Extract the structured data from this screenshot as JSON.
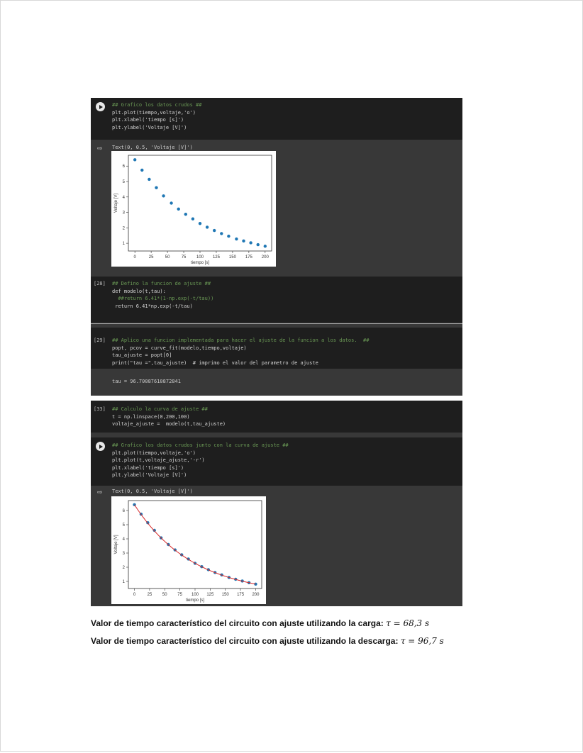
{
  "cells": {
    "plot_raw": {
      "lines": [
        "## Grafico los datos crudos ##",
        "plt.plot(tiempo,voltaje,'o')",
        "plt.xlabel('tiempo [s]')",
        "plt.ylabel('Voltaje [V]')"
      ],
      "output": "Text(0, 0.5, 'Voltaje [V]')"
    },
    "def_model": {
      "number": "[28]",
      "lines": [
        "## Defino la funcion de ajuste ##",
        "def modelo(t,tau):",
        "  ##return 6.41*(1-np.exp(-t/tau))",
        " return 6.41*np.exp(-t/tau)"
      ]
    },
    "fit": {
      "number": "[29]",
      "lines": [
        "## Aplico una funcion implementada para hacer el ajuste de la funcion a los datos.  ##",
        "popt, pcov = curve_fit(modelo,tiempo,voltaje)",
        "tau_ajuste = popt[0]",
        "print(\"tau =\",tau_ajuste)  # imprimo el valor del parametro de ajuste"
      ],
      "output": "tau = 96.70087610872841"
    },
    "curve": {
      "number": "[33]",
      "lines": [
        "## Calculo la curva de ajuste ##",
        "t = np.linspace(0,200,100)",
        "voltaje_ajuste =  modelo(t,tau_ajuste)"
      ]
    },
    "plot_fit": {
      "lines": [
        "## Grafico los datos crudos junto con la curva de ajuste ##",
        "plt.plot(tiempo,voltaje,'o')",
        "plt.plot(t,voltaje_ajuste,'-r')",
        "plt.xlabel('tiempo [s]')",
        "plt.ylabel('Voltaje [V]')"
      ],
      "output": "Text(0, 0.5, 'Voltaje [V]')"
    }
  },
  "results": {
    "charge_label": "Valor de tiempo característico del circuito con ajuste utilizando la carga:",
    "charge_value": "τ = 68,3 s",
    "discharge_label": "Valor de tiempo característico del circuito con ajuste utilizando la descarga:",
    "discharge_value": "τ = 96,7 s"
  },
  "chart_data": [
    {
      "type": "scatter",
      "xlabel": "tiempo [s]",
      "ylabel": "Voltaje [V]",
      "xlim": [
        -10,
        210
      ],
      "ylim": [
        0.5,
        6.7
      ],
      "xticks": [
        0,
        25,
        50,
        75,
        100,
        125,
        150,
        175,
        200
      ],
      "yticks": [
        1,
        2,
        3,
        4,
        5,
        6
      ],
      "marker_color": "#1f77b4",
      "x": [
        0,
        11,
        22,
        33,
        44,
        56,
        67,
        78,
        89,
        100,
        111,
        122,
        133,
        144,
        156,
        167,
        178,
        189,
        200
      ],
      "y": [
        6.41,
        5.74,
        5.14,
        4.6,
        4.07,
        3.6,
        3.22,
        2.88,
        2.58,
        2.28,
        2.04,
        1.83,
        1.63,
        1.46,
        1.28,
        1.15,
        1.03,
        0.91,
        0.81
      ]
    },
    {
      "type": "line",
      "xlabel": "tiempo [s]",
      "ylabel": "Voltaje [V]",
      "xlim": [
        -10,
        210
      ],
      "ylim": [
        0.5,
        6.7
      ],
      "xticks": [
        0,
        25,
        50,
        75,
        100,
        125,
        150,
        175,
        200
      ],
      "yticks": [
        1,
        2,
        3,
        4,
        5,
        6
      ],
      "marker_color": "#1f77b4",
      "fit_color": "#d62728",
      "tau": 96.7,
      "amplitude": 6.41,
      "x": [
        0,
        11,
        22,
        33,
        44,
        56,
        67,
        78,
        89,
        100,
        111,
        122,
        133,
        144,
        156,
        167,
        178,
        189,
        200
      ],
      "y": [
        6.41,
        5.74,
        5.14,
        4.6,
        4.07,
        3.6,
        3.22,
        2.88,
        2.58,
        2.28,
        2.04,
        1.83,
        1.63,
        1.46,
        1.28,
        1.15,
        1.03,
        0.91,
        0.81
      ]
    }
  ]
}
